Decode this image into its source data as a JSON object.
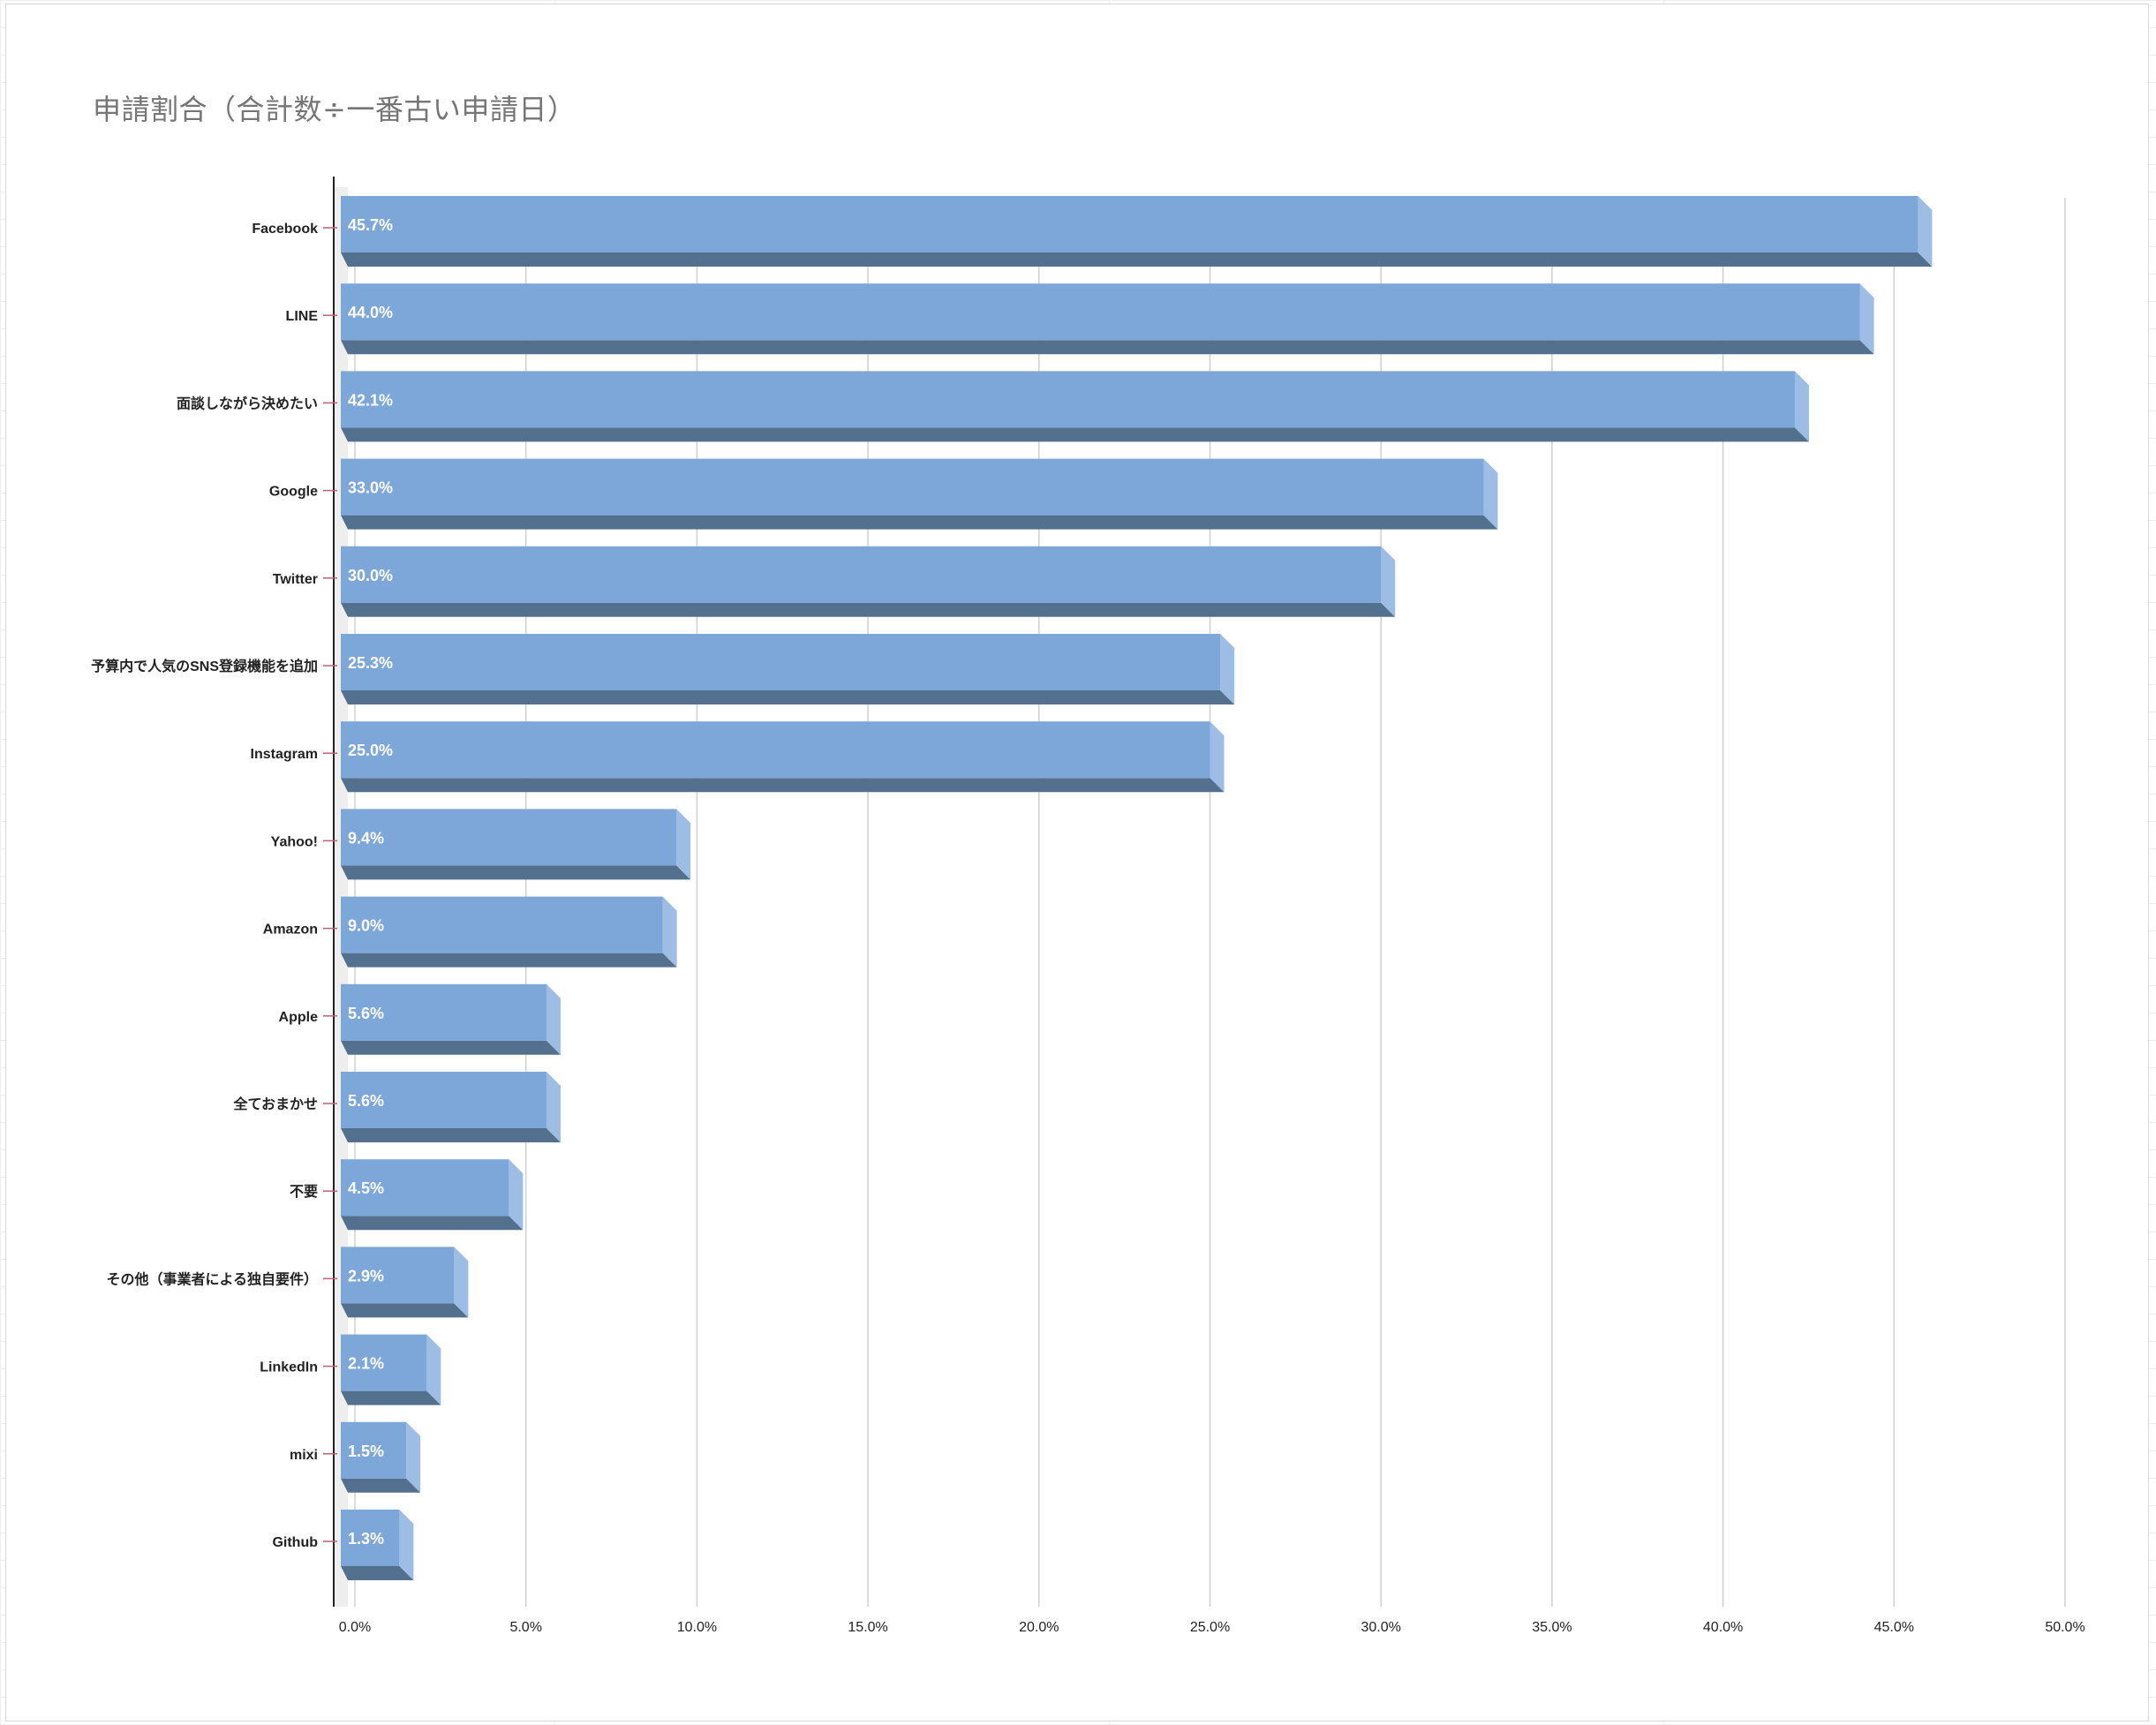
{
  "chart_data": {
    "type": "bar",
    "orientation": "horizontal",
    "style": "3d",
    "title": "申請割合（合計数÷一番古い申請日）",
    "categories": [
      "Facebook",
      "LINE",
      "面談しながら決めたい",
      "Google",
      "Twitter",
      "予算内で人気のSNS登録機能を追加",
      "Instagram",
      "Yahoo!",
      "Amazon",
      "Apple",
      "全ておまかせ",
      "不要",
      "その他（事業者による独自要件）",
      "LinkedIn",
      "mixi",
      "Github"
    ],
    "values": [
      45.7,
      44.0,
      42.1,
      33.0,
      30.0,
      25.3,
      25.0,
      9.4,
      9.0,
      5.6,
      5.6,
      4.5,
      2.9,
      2.1,
      1.5,
      1.3
    ],
    "data_labels": [
      "45.7%",
      "44.0%",
      "42.1%",
      "33.0%",
      "30.0%",
      "25.3%",
      "25.0%",
      "9.4%",
      "9.0%",
      "5.6%",
      "5.6%",
      "4.5%",
      "2.9%",
      "2.1%",
      "1.5%",
      "1.3%"
    ],
    "xlim": [
      0,
      50
    ],
    "xticks": [
      "0.0%",
      "5.0%",
      "10.0%",
      "15.0%",
      "20.0%",
      "25.0%",
      "30.0%",
      "35.0%",
      "40.0%",
      "45.0%",
      "50.0%"
    ],
    "grid": true,
    "legend": "none",
    "colors": {
      "bar_face": "#7da7d8",
      "bar_bottom": "#54708f",
      "bar_end": "#9dbde4",
      "gridline": "#d0d0d0",
      "axis": "#222222",
      "tick_mark": "#c06070"
    }
  }
}
